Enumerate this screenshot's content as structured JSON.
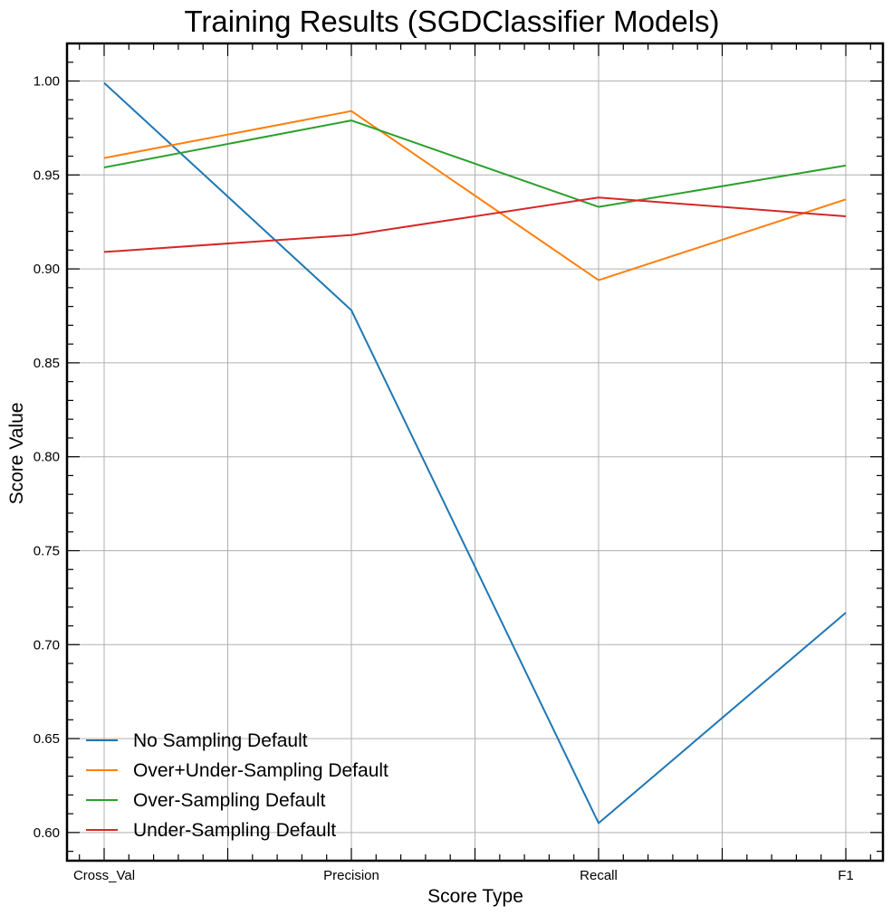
{
  "chart_data": {
    "type": "line",
    "title": "Training Results (SGDClassifier Models)",
    "xlabel": "Score Type",
    "ylabel": "Score Value",
    "categories": [
      "Cross_Val",
      "Precision",
      "Recall",
      "F1"
    ],
    "ylim": [
      0.585,
      1.02
    ],
    "yticks": [
      "0.60",
      "0.65",
      "0.70",
      "0.75",
      "0.80",
      "0.85",
      "0.90",
      "0.95",
      "1.00"
    ],
    "grid": true,
    "legend_position": "lower-left",
    "series": [
      {
        "name": "No Sampling Default",
        "color": "#1f77b4",
        "values": [
          0.999,
          0.878,
          0.605,
          0.717
        ]
      },
      {
        "name": "Over+Under-Sampling Default",
        "color": "#ff7f0e",
        "values": [
          0.959,
          0.984,
          0.894,
          0.937
        ]
      },
      {
        "name": "Over-Sampling Default",
        "color": "#2ca02c",
        "values": [
          0.954,
          0.979,
          0.933,
          0.955
        ]
      },
      {
        "name": "Under-Sampling Default",
        "color": "#d62728",
        "values": [
          0.909,
          0.918,
          0.938,
          0.928
        ]
      }
    ]
  }
}
